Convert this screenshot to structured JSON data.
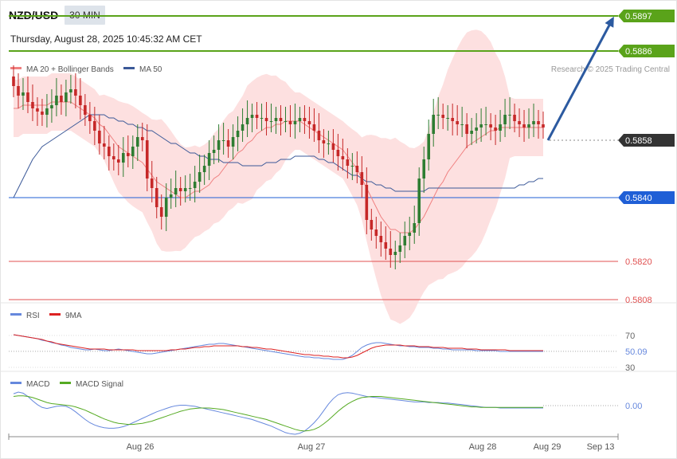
{
  "header": {
    "pair": "NZD/USD",
    "timeframe": "30 MIN",
    "datetime": "Thursday, August 28, 2025 10:45:32 AM CET"
  },
  "credit": "Research © 2025 Trading Central",
  "legend": {
    "ma20": "MA 20 + Bollinger Bands",
    "ma50": "MA 50",
    "rsi": "RSI",
    "rsi_ma": "9MA",
    "macd": "MACD",
    "macd_signal": "MACD Signal"
  },
  "colors": {
    "up": "#2e7d32",
    "down": "#c62828",
    "band": "#fde0e0",
    "ma20": "#f08080",
    "ma50": "#3b5998",
    "resistance": "#5aa31a",
    "support_line": "#1f5fd6",
    "support_low": "#e05050",
    "current": "#333333",
    "arrow": "#2c5aa0",
    "rsi": "#6688dd",
    "rsi_ma": "#dd2222",
    "macd": "#6688dd",
    "macd_signal": "#55aa22"
  },
  "chart_data": [
    {
      "type": "candlestick",
      "title": "NZD/USD",
      "ylim": [
        0.58,
        0.59
      ],
      "x_ticks": [
        "Aug 26",
        "Aug 27",
        "Aug 28",
        "Aug 29",
        "Sep 13"
      ],
      "price_levels": [
        {
          "label": "0.5897",
          "value": 0.5897,
          "kind": "resistance"
        },
        {
          "label": "0.5886",
          "value": 0.5886,
          "kind": "resistance"
        },
        {
          "label": "0.5858",
          "value": 0.5858,
          "kind": "current"
        },
        {
          "label": "0.5840",
          "value": 0.584,
          "kind": "pivot"
        },
        {
          "label": "0.5820",
          "value": 0.582,
          "kind": "support"
        },
        {
          "label": "0.5808",
          "value": 0.5808,
          "kind": "support"
        }
      ],
      "forecast_arrow": {
        "from": 0.5858,
        "to": 0.5897
      },
      "close": [
        0.5875,
        0.5872,
        0.5873,
        0.587,
        0.5868,
        0.5867,
        0.5866,
        0.5868,
        0.5869,
        0.5872,
        0.587,
        0.5873,
        0.5874,
        0.5872,
        0.5869,
        0.5866,
        0.5864,
        0.5861,
        0.5857,
        0.5856,
        0.5853,
        0.5852,
        0.5851,
        0.5854,
        0.5853,
        0.5856,
        0.5859,
        0.5858,
        0.5846,
        0.5843,
        0.5837,
        0.5834,
        0.584,
        0.5841,
        0.5843,
        0.5842,
        0.5843,
        0.5843,
        0.5845,
        0.5848,
        0.585,
        0.5854,
        0.5855,
        0.5858,
        0.5858,
        0.5856,
        0.5859,
        0.5861,
        0.5863,
        0.5865,
        0.5866,
        0.5865,
        0.5865,
        0.5864,
        0.5864,
        0.5865,
        0.5864,
        0.5864,
        0.5863,
        0.5864,
        0.5865,
        0.5864,
        0.5863,
        0.5861,
        0.5858,
        0.5857,
        0.5857,
        0.5855,
        0.5853,
        0.5852,
        0.585,
        0.585,
        0.5848,
        0.5844,
        0.5833,
        0.583,
        0.5828,
        0.5826,
        0.5824,
        0.5822,
        0.5823,
        0.5825,
        0.5828,
        0.5829,
        0.5832,
        0.5846,
        0.5852,
        0.586,
        0.5866,
        0.5866,
        0.5865,
        0.5865,
        0.5864,
        0.5863,
        0.5863,
        0.586,
        0.5861,
        0.5862,
        0.5863,
        0.5863,
        0.5862,
        0.5861,
        0.5863,
        0.5866,
        0.5866,
        0.5864,
        0.5863,
        0.5862,
        0.5863,
        0.5864,
        0.5863,
        0.5862
      ],
      "ma20": [
        0.5868,
        0.5868,
        0.5869,
        0.5869,
        0.5869,
        0.5869,
        0.5869,
        0.5869,
        0.587,
        0.587,
        0.587,
        0.587,
        0.587,
        0.5869,
        0.5868,
        0.5867,
        0.5866,
        0.5865,
        0.5863,
        0.5862,
        0.586,
        0.5858,
        0.5856,
        0.5855,
        0.5854,
        0.5853,
        0.5852,
        0.5851,
        0.5849,
        0.5847,
        0.5845,
        0.5844,
        0.5843,
        0.5842,
        0.5841,
        0.584,
        0.584,
        0.5841,
        0.5842,
        0.5842,
        0.5843,
        0.5844,
        0.5846,
        0.5847,
        0.5849,
        0.5851,
        0.5852,
        0.5854,
        0.5855,
        0.5857,
        0.5858,
        0.586,
        0.5861,
        0.5862,
        0.5862,
        0.5863,
        0.5863,
        0.5864,
        0.5864,
        0.5864,
        0.5864,
        0.5863,
        0.5862,
        0.5861,
        0.586,
        0.5859,
        0.5858,
        0.5857,
        0.5856,
        0.5855,
        0.5853,
        0.5851,
        0.5849,
        0.5846,
        0.5843,
        0.584,
        0.5837,
        0.5834,
        0.5832,
        0.583,
        0.583,
        0.5829,
        0.5829,
        0.5829,
        0.583,
        0.5832,
        0.5834,
        0.5837,
        0.584,
        0.5843,
        0.5845,
        0.5848,
        0.585,
        0.5852,
        0.5854,
        0.5856,
        0.5857,
        0.5858,
        0.5859,
        0.586,
        0.5861,
        0.5861,
        0.5862,
        0.5862,
        0.5862,
        0.5862,
        0.5862,
        0.5862,
        0.5862,
        0.5862,
        0.5862,
        0.5862
      ],
      "ma50": [
        0.584,
        0.5843,
        0.5846,
        0.5849,
        0.5852,
        0.5854,
        0.5856,
        0.5857,
        0.5858,
        0.5859,
        0.586,
        0.5861,
        0.5862,
        0.5863,
        0.5864,
        0.5865,
        0.5866,
        0.5866,
        0.5866,
        0.5866,
        0.5865,
        0.5865,
        0.5864,
        0.5864,
        0.5863,
        0.5863,
        0.5862,
        0.5862,
        0.5861,
        0.5861,
        0.586,
        0.5859,
        0.5858,
        0.5857,
        0.5857,
        0.5856,
        0.5855,
        0.5854,
        0.5854,
        0.5853,
        0.5853,
        0.5852,
        0.5852,
        0.5852,
        0.5851,
        0.5851,
        0.5851,
        0.5851,
        0.585,
        0.585,
        0.585,
        0.585,
        0.585,
        0.5851,
        0.5851,
        0.5851,
        0.5852,
        0.5852,
        0.5852,
        0.5853,
        0.5853,
        0.5853,
        0.5853,
        0.5853,
        0.5852,
        0.5852,
        0.5851,
        0.5851,
        0.585,
        0.5849,
        0.5848,
        0.5847,
        0.5847,
        0.5846,
        0.5845,
        0.5845,
        0.5844,
        0.5844,
        0.5843,
        0.5843,
        0.5842,
        0.5842,
        0.5842,
        0.5842,
        0.5842,
        0.5842,
        0.5842,
        0.5843,
        0.5843,
        0.5843,
        0.5843,
        0.5843,
        0.5843,
        0.5843,
        0.5843,
        0.5843,
        0.5843,
        0.5843,
        0.5843,
        0.5843,
        0.5843,
        0.5843,
        0.5843,
        0.5843,
        0.5843,
        0.5843,
        0.5844,
        0.5844,
        0.5845,
        0.5845,
        0.5846,
        0.5846
      ]
    },
    {
      "type": "line",
      "title": "RSI",
      "ylim": [
        20,
        80
      ],
      "ticks": [
        "70",
        "30"
      ],
      "current_label": "50.09",
      "current": 50.09,
      "rsi": [
        71,
        70,
        69,
        68,
        67,
        66,
        64,
        63,
        61,
        60,
        58,
        57,
        55,
        54,
        53,
        52,
        52,
        53,
        52,
        51,
        51,
        52,
        53,
        52,
        51,
        50,
        49,
        48,
        47,
        47,
        48,
        49,
        50,
        51,
        52,
        53,
        54,
        55,
        56,
        57,
        58,
        59,
        59,
        60,
        60,
        59,
        58,
        57,
        56,
        55,
        54,
        53,
        52,
        51,
        50,
        49,
        48,
        47,
        46,
        45,
        44,
        43,
        43,
        42,
        42,
        41,
        41,
        40,
        40,
        40,
        42,
        45,
        50,
        55,
        58,
        60,
        61,
        61,
        60,
        59,
        58,
        57,
        57,
        56,
        56,
        55,
        55,
        55,
        54,
        54,
        53,
        53,
        52,
        52,
        52,
        52,
        52,
        51,
        51,
        51,
        51,
        51,
        50,
        50,
        50,
        50,
        50,
        50,
        50,
        50,
        50,
        50
      ],
      "rsi_ma": [
        71,
        70,
        69,
        68,
        67,
        66,
        65,
        63,
        62,
        60,
        59,
        58,
        57,
        56,
        55,
        54,
        53,
        53,
        53,
        53,
        52,
        52,
        52,
        52,
        52,
        52,
        51,
        51,
        51,
        51,
        51,
        51,
        51,
        52,
        52,
        53,
        53,
        54,
        55,
        55,
        56,
        56,
        57,
        57,
        57,
        57,
        57,
        57,
        56,
        56,
        55,
        55,
        54,
        53,
        53,
        52,
        51,
        50,
        49,
        48,
        47,
        46,
        46,
        45,
        45,
        44,
        44,
        43,
        43,
        42,
        42,
        43,
        45,
        48,
        51,
        54,
        56,
        57,
        58,
        58,
        58,
        58,
        57,
        57,
        57,
        56,
        56,
        56,
        55,
        55,
        55,
        54,
        54,
        54,
        54,
        53,
        53,
        53,
        52,
        52,
        52,
        52,
        52,
        52,
        51,
        51,
        51,
        51,
        51,
        51,
        51,
        51
      ]
    },
    {
      "type": "line",
      "title": "MACD",
      "current_label": "0.00",
      "current": 0.0,
      "macd": [
        0.00035,
        0.00038,
        0.00036,
        0.0003,
        0.00022,
        0.00015,
        0.0001,
        8e-05,
        0.0001,
        0.00012,
        0.00013,
        0.00012,
        8e-05,
        2e-05,
        -5e-05,
        -0.00012,
        -0.00018,
        -0.00022,
        -0.00025,
        -0.00027,
        -0.00028,
        -0.00028,
        -0.00027,
        -0.00025,
        -0.00022,
        -0.00018,
        -0.00014,
        -0.0001,
        -6e-05,
        -2e-05,
        2e-05,
        5e-05,
        8e-05,
        0.00011,
        0.00013,
        0.00014,
        0.00014,
        0.00013,
        0.00012,
        0.0001,
        8e-05,
        6e-05,
        4e-05,
        2e-05,
        0.0,
        -2e-05,
        -4e-05,
        -6e-05,
        -8e-05,
        -0.0001,
        -0.00012,
        -0.00015,
        -0.00018,
        -0.00021,
        -0.00024,
        -0.00028,
        -0.00032,
        -0.00036,
        -0.00038,
        -0.00039,
        -0.00037,
        -0.00033,
        -0.00026,
        -0.00018,
        -8e-05,
        4e-05,
        0.00016,
        0.00026,
        0.00033,
        0.00036,
        0.00037,
        0.00036,
        0.00034,
        0.00032,
        0.0003,
        0.00029,
        0.00028,
        0.00027,
        0.00026,
        0.00025,
        0.00024,
        0.00023,
        0.00022,
        0.00021,
        0.0002,
        0.0002,
        0.0002,
        0.00019,
        0.00019,
        0.00019,
        0.00018,
        0.00018,
        0.00017,
        0.00016,
        0.00015,
        0.00014,
        0.00013,
        0.00012,
        0.00011,
        0.0001,
        0.0001,
        0.0001,
        9e-05,
        9e-05,
        9e-05,
        9e-05,
        9e-05,
        9e-05,
        9e-05,
        9e-05,
        9e-05,
        9e-05
      ],
      "macd_signal": [
        0.0003,
        0.00031,
        0.00031,
        0.0003,
        0.00028,
        0.00025,
        0.00022,
        0.00019,
        0.00017,
        0.00016,
        0.00015,
        0.00014,
        0.00013,
        0.00011,
        8e-05,
        5e-05,
        1e-05,
        -3e-05,
        -7e-05,
        -0.00011,
        -0.00014,
        -0.00017,
        -0.00019,
        -0.0002,
        -0.00021,
        -0.00021,
        -0.0002,
        -0.00019,
        -0.00017,
        -0.00015,
        -0.00012,
        -9e-05,
        -6e-05,
        -3e-05,
        0.0,
        3e-05,
        5e-05,
        7e-05,
        8e-05,
        9e-05,
        9e-05,
        9e-05,
        8e-05,
        7e-05,
        6e-05,
        4e-05,
        2e-05,
        0.0,
        -2e-05,
        -4e-05,
        -6e-05,
        -8e-05,
        -0.0001,
        -0.00012,
        -0.00015,
        -0.00018,
        -0.00021,
        -0.00024,
        -0.00027,
        -0.0003,
        -0.00032,
        -0.00033,
        -0.00032,
        -0.0003,
        -0.00026,
        -0.0002,
        -0.00013,
        -5e-05,
        3e-05,
        0.0001,
        0.00016,
        0.00021,
        0.00025,
        0.00028,
        0.00029,
        0.0003,
        0.0003,
        0.0003,
        0.00029,
        0.00028,
        0.00027,
        0.00026,
        0.00025,
        0.00024,
        0.00023,
        0.00022,
        0.00021,
        0.0002,
        0.00019,
        0.00018,
        0.00017,
        0.00016,
        0.00015,
        0.00014,
        0.00013,
        0.00012,
        0.00011,
        0.00011,
        0.0001,
        0.0001,
        0.0001,
        0.0001,
        0.0001,
        0.0001,
        0.0001,
        0.0001,
        0.0001,
        0.0001,
        0.0001,
        0.0001,
        0.0001,
        0.0001
      ]
    }
  ]
}
